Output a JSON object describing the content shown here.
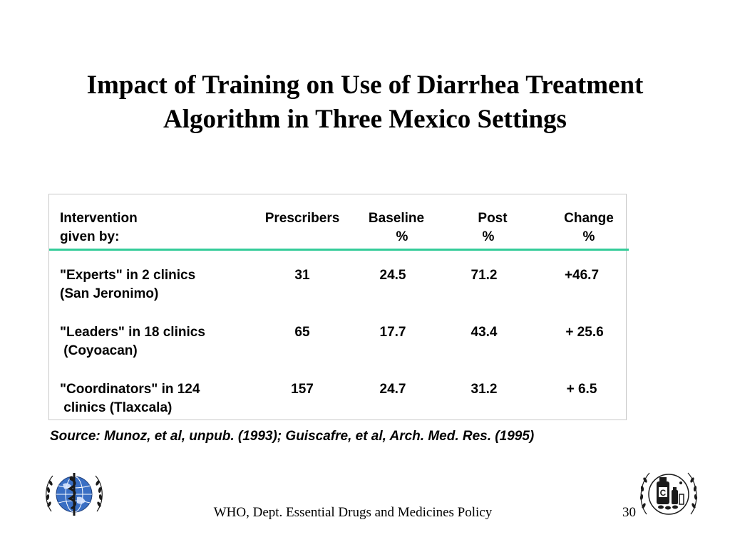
{
  "slide": {
    "title_line1": "Impact of Training on Use of Diarrhea Treatment",
    "title_line2": "Algorithm in Three Mexico Settings"
  },
  "table": {
    "headers": {
      "intervention": [
        "Intervention",
        "given by:"
      ],
      "prescribers": [
        "Prescribers",
        ""
      ],
      "baseline": [
        "Baseline",
        "%"
      ],
      "post": [
        "Post",
        "%"
      ],
      "change": [
        "Change",
        "%"
      ]
    },
    "rows": [
      {
        "intervention": [
          "\"Experts\" in 2 clinics",
          "(San Jeronimo)"
        ],
        "prescribers": "31",
        "baseline": "24.5",
        "post": "71.2",
        "change": "+46.7"
      },
      {
        "intervention": [
          "\"Leaders\" in 18 clinics",
          " (Coyoacan)"
        ],
        "prescribers": "65",
        "baseline": "17.7",
        "post": "43.4",
        "change": "+ 25.6"
      },
      {
        "intervention": [
          "\"Coordinators\" in 124",
          " clinics (Tlaxcala)"
        ],
        "prescribers": "157",
        "baseline": "24.7",
        "post": "31.2",
        "change": "+ 6.5"
      }
    ]
  },
  "source": "Source: Munoz, et al, unpub. (1993); Guiscafre, et al, Arch. Med. Res. (1995)",
  "footer": {
    "text": "WHO, Dept. Essential Drugs and Medicines Policy",
    "page_number": "30"
  },
  "logos": {
    "left_icon": "who-emblem-icon",
    "right_icon": "essential-drugs-emblem-icon"
  }
}
